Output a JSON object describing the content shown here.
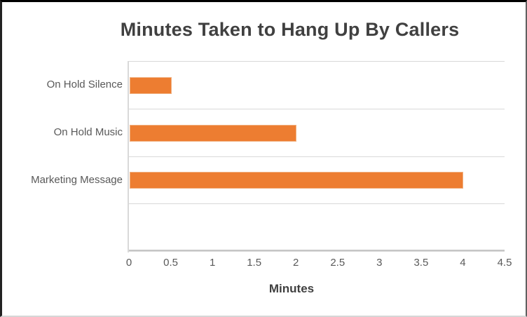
{
  "chart_data": {
    "type": "bar",
    "orientation": "horizontal",
    "title": "Minutes Taken to Hang Up By Callers",
    "xlabel": "Minutes",
    "categories": [
      "On Hold Silence",
      "On Hold Music",
      "Marketing Message"
    ],
    "values": [
      0.5,
      2,
      4
    ],
    "xlim": [
      0,
      4.5
    ],
    "xtick_labels": [
      "0",
      "0.5",
      "1",
      "1.5",
      "2",
      "2.5",
      "3",
      "3.5",
      "4",
      "4.5"
    ],
    "xtick_step": 0.5,
    "grid": true,
    "legend": false,
    "plot_bands": 4,
    "bar_color": "#ED7D31",
    "gridline_color": "#D9D9D9",
    "axis_line_color": "#C6C6C6",
    "tick_text_color": "#595959",
    "title_color": "#404040"
  }
}
